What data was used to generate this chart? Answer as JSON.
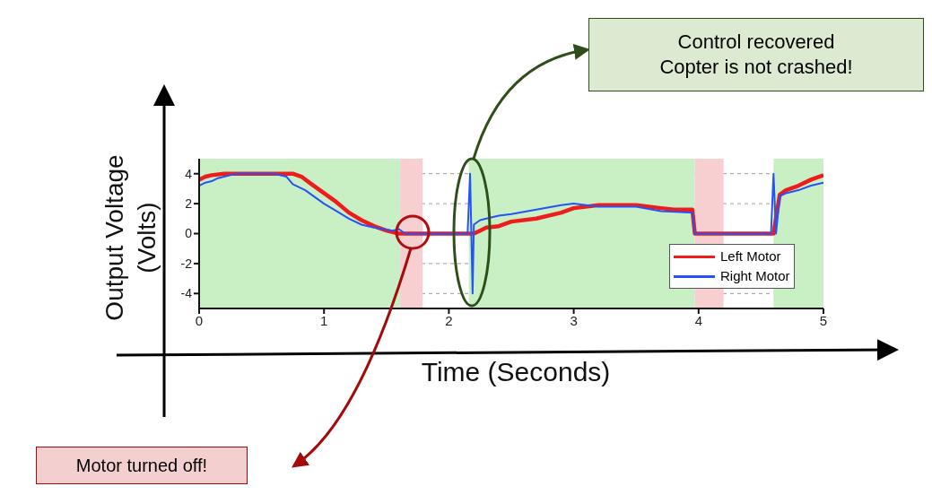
{
  "chart_data": {
    "type": "line",
    "xlabel": "Time (Seconds)",
    "ylabel": "Output Voltage (Volts)",
    "xlim": [
      0,
      5
    ],
    "xticks": [
      0,
      1,
      2,
      3,
      4,
      5
    ],
    "ylim": [
      -5,
      5
    ],
    "yticks": [
      -4,
      -2,
      0,
      2,
      4
    ],
    "grid": "y",
    "legend": "bottom right",
    "marker": "none",
    "line_style": "solid",
    "bands": [
      {
        "axis": "x",
        "from": 0,
        "to": 1.61,
        "color": "#c9f0c4"
      },
      {
        "axis": "x",
        "from": 1.61,
        "to": 1.79,
        "color": "#f7cfd1"
      },
      {
        "axis": "x",
        "from": 2.16,
        "to": 3.97,
        "color": "#c9f0c4"
      },
      {
        "axis": "x",
        "from": 3.97,
        "to": 4.2,
        "color": "#f7cfd1"
      },
      {
        "axis": "x",
        "from": 4.6,
        "to": 5,
        "color": "#c9f0c4"
      }
    ],
    "series": [
      {
        "name": "Left Motor",
        "color": "#ee1c1c",
        "x": [
          0,
          0.05,
          0.1,
          0.2,
          0.5,
          0.75,
          0.82,
          0.9,
          1.0,
          1.1,
          1.2,
          1.3,
          1.4,
          1.5,
          1.6,
          1.65,
          2.2,
          2.25,
          2.3,
          2.4,
          2.5,
          2.7,
          2.9,
          3.0,
          3.2,
          3.5,
          3.7,
          3.8,
          3.95,
          3.97,
          4.6,
          4.65,
          4.7,
          4.8,
          4.9,
          5
        ],
        "values": [
          3.6,
          3.8,
          3.9,
          4,
          4,
          4,
          3.8,
          3.3,
          2.7,
          2.1,
          1.4,
          0.9,
          0.5,
          0.2,
          0,
          0,
          0,
          0.2,
          0.4,
          0.5,
          0.8,
          1.0,
          1.4,
          1.7,
          1.9,
          1.9,
          1.7,
          1.6,
          1.6,
          0,
          0,
          2.6,
          2.9,
          3.2,
          3.6,
          3.9
        ]
      },
      {
        "name": "Right Motor",
        "color": "#2553f5",
        "x": [
          0,
          0.05,
          0.1,
          0.15,
          0.25,
          0.3,
          0.6,
          0.7,
          0.75,
          0.85,
          1.0,
          1.1,
          1.2,
          1.3,
          1.4,
          1.55,
          1.6,
          1.65,
          2.15,
          2.17,
          2.19,
          2.2,
          2.25,
          2.3,
          2.4,
          2.5,
          2.7,
          2.9,
          3.0,
          3.2,
          3.5,
          3.7,
          3.95,
          3.97,
          4.58,
          4.6,
          4.62,
          4.65,
          4.7,
          4.8,
          4.9,
          5
        ],
        "values": [
          3.2,
          3.4,
          3.5,
          3.7,
          3.9,
          4,
          4,
          3.8,
          3.3,
          2.9,
          2.0,
          1.5,
          1.0,
          0.6,
          0.4,
          0.2,
          0.3,
          0,
          0,
          4,
          -4,
          0.6,
          0.9,
          1.0,
          1.2,
          1.3,
          1.6,
          1.9,
          2.0,
          1.8,
          1.8,
          1.5,
          1.4,
          0,
          0,
          4,
          0,
          2.5,
          2.7,
          2.9,
          3.2,
          3.4
        ]
      }
    ],
    "annotations": [
      "Motor turned off!",
      "Control recovered\nCopter is not crashed!"
    ]
  }
}
